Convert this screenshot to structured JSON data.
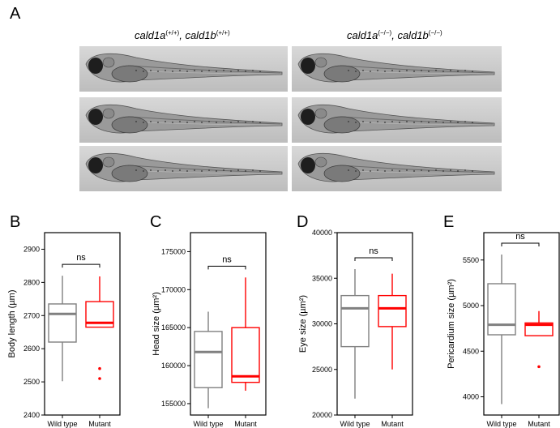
{
  "panel_a": {
    "letter": "A",
    "left_genotype": {
      "gene1": "cald1a",
      "sup1": "(+/+)",
      "sep": ", ",
      "gene2": "cald1b",
      "sup2": "(+/+)"
    },
    "right_genotype": {
      "gene1": "cald1a",
      "sup1": "(−/−)",
      "sep": ", ",
      "gene2": "cald1b",
      "sup2": "(−/−)"
    }
  },
  "chart_data": [
    {
      "type": "box",
      "panel": "B",
      "ylabel": "Body length (µm)",
      "ylim": [
        2400,
        2950
      ],
      "yticks": [
        2400,
        2500,
        2600,
        2700,
        2800,
        2900
      ],
      "categories": [
        "Wild type",
        "Mutant"
      ],
      "series": [
        {
          "name": "Wild type",
          "color": "#808080",
          "min": 2502,
          "q1": 2620,
          "median": 2705,
          "q3": 2735,
          "max": 2820,
          "outliers": []
        },
        {
          "name": "Mutant",
          "color": "#ff0000",
          "min": 2665,
          "q1": 2665,
          "median": 2678,
          "q3": 2742,
          "max": 2818,
          "outliers": [
            2540,
            2510
          ]
        }
      ],
      "annotation": "ns"
    },
    {
      "type": "box",
      "panel": "C",
      "ylabel": "Head size (µm²)",
      "ylim": [
        153500,
        177500
      ],
      "yticks": [
        155000,
        160000,
        165000,
        170000,
        175000
      ],
      "categories": [
        "Wild type",
        "Mutant"
      ],
      "series": [
        {
          "name": "Wild type",
          "color": "#808080",
          "min": 154400,
          "q1": 157100,
          "median": 161800,
          "q3": 164500,
          "max": 167100,
          "outliers": []
        },
        {
          "name": "Mutant",
          "color": "#ff0000",
          "min": 156700,
          "q1": 157800,
          "median": 158600,
          "q3": 165000,
          "max": 171600,
          "outliers": []
        }
      ],
      "annotation": "ns"
    },
    {
      "type": "box",
      "panel": "D",
      "ylabel": "Eye size (µm²)",
      "ylim": [
        20000,
        40000
      ],
      "yticks": [
        20000,
        25000,
        30000,
        35000,
        40000
      ],
      "categories": [
        "Wild type",
        "Mutant"
      ],
      "series": [
        {
          "name": "Wild type",
          "color": "#808080",
          "min": 21800,
          "q1": 27500,
          "median": 31700,
          "q3": 33100,
          "max": 36000,
          "outliers": []
        },
        {
          "name": "Mutant",
          "color": "#ff0000",
          "min": 25000,
          "q1": 29700,
          "median": 31700,
          "q3": 33100,
          "max": 35500,
          "outliers": []
        }
      ],
      "annotation": "ns"
    },
    {
      "type": "box",
      "panel": "E",
      "ylabel": "Pericardium size (µm²)",
      "ylim": [
        3800,
        5800
      ],
      "yticks": [
        4000,
        4500,
        5000,
        5500
      ],
      "categories": [
        "Wild type",
        "Mutant"
      ],
      "series": [
        {
          "name": "Wild type",
          "color": "#808080",
          "min": 3920,
          "q1": 4680,
          "median": 4790,
          "q3": 5240,
          "max": 5560,
          "outliers": []
        },
        {
          "name": "Mutant",
          "color": "#ff0000",
          "min": 4670,
          "q1": 4670,
          "median": 4790,
          "q3": 4810,
          "max": 4940,
          "outliers": [
            4330
          ]
        }
      ],
      "annotation": "ns"
    }
  ]
}
